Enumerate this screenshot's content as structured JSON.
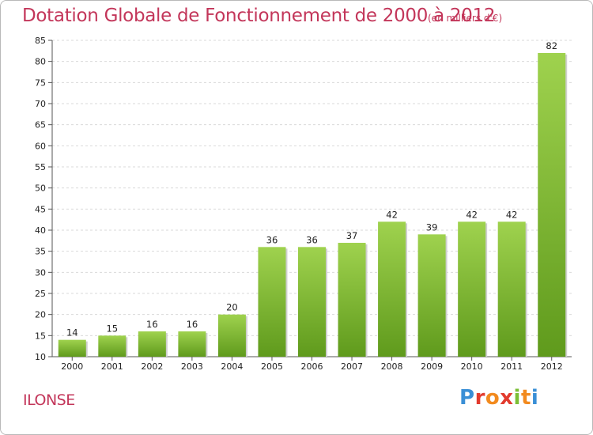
{
  "header": {
    "title": "Dotation Globale de Fonctionnement de 2000 à 2012",
    "unit": "(en milliers d'€)"
  },
  "footer": {
    "commune": "ILONSE",
    "logo_text": "Proxiti"
  },
  "colors": {
    "title": "#c3365a",
    "bar_top": "#9fd24e",
    "bar_bottom": "#5f9a1c"
  },
  "chart_data": {
    "type": "bar",
    "categories": [
      "2000",
      "2001",
      "2002",
      "2003",
      "2004",
      "2005",
      "2006",
      "2007",
      "2008",
      "2009",
      "2010",
      "2011",
      "2012"
    ],
    "values": [
      14,
      15,
      16,
      16,
      20,
      36,
      36,
      37,
      42,
      39,
      42,
      42,
      82
    ],
    "ylim": [
      10,
      85
    ],
    "yticks": [
      10,
      15,
      20,
      25,
      30,
      35,
      40,
      45,
      50,
      55,
      60,
      65,
      70,
      75,
      80,
      85
    ],
    "grid": true,
    "legend": "none"
  }
}
